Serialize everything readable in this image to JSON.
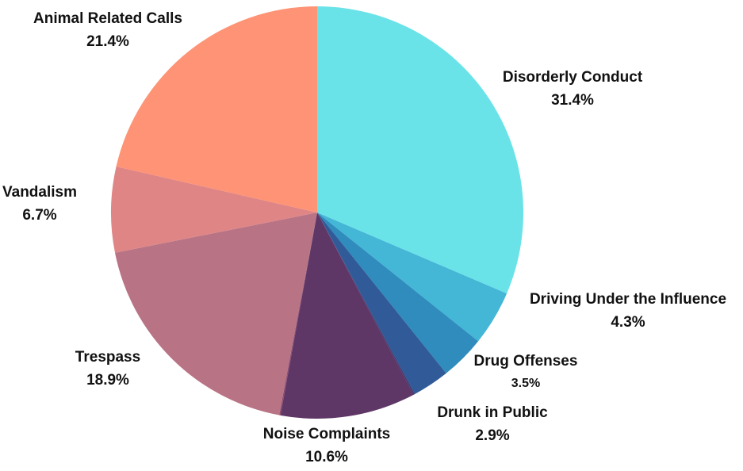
{
  "chart_data": {
    "type": "pie",
    "title": "",
    "slices": [
      {
        "label": "Disorderly Conduct",
        "value": 31.4,
        "display": "31.4%",
        "color": "#6ae3e8"
      },
      {
        "label": "Driving Under the Influence",
        "value": 4.3,
        "display": "4.3%",
        "color": "#44b6d6"
      },
      {
        "label": "Drug Offenses",
        "value": 3.5,
        "display": "3.5%",
        "color": "#2f8cbd"
      },
      {
        "label": "Drunk in Public",
        "value": 2.9,
        "display": "2.9%",
        "color": "#305b98"
      },
      {
        "label": "",
        "value": 0.1,
        "display": "",
        "color": "#3a3670"
      },
      {
        "label": "Noise Complaints",
        "value": 10.6,
        "display": "10.6%",
        "color": "#5f3767"
      },
      {
        "label": "",
        "value": 0.1,
        "display": "",
        "color": "#8c4c6e"
      },
      {
        "label": "Trespass",
        "value": 18.9,
        "display": "18.9%",
        "color": "#b87385"
      },
      {
        "label": "Vandalism",
        "value": 6.7,
        "display": "6.7%",
        "color": "#e08585"
      },
      {
        "label": "Animal Related Calls",
        "value": 21.4,
        "display": "21.4%",
        "color": "#fe9375"
      }
    ]
  }
}
